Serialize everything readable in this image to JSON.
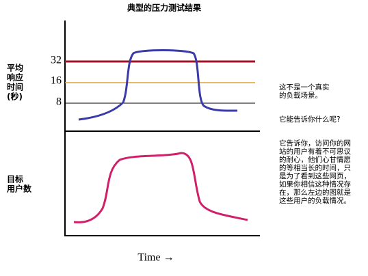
{
  "title": "典型的压力测试结果",
  "y_label_top": [
    "平均",
    "响应",
    "时间",
    "(秒)"
  ],
  "y_label_bottom": [
    "目标",
    "用户数"
  ],
  "ticks": [
    32,
    16,
    8
  ],
  "x_label": "Time →",
  "notes": [
    [
      "这不是一个真实",
      "的负载场景。"
    ],
    [
      "它能告诉你什么呢?"
    ],
    [
      "它告诉你，访问你的网",
      "站的用户有着不可思议",
      "的耐心，他们心甘情愿",
      "的等相当长的时间，只",
      "是为了看到这些网页，",
      "如果你相信这种情况存",
      "在，那么左边的图就是",
      "这些用户的负载情况。"
    ]
  ]
}
